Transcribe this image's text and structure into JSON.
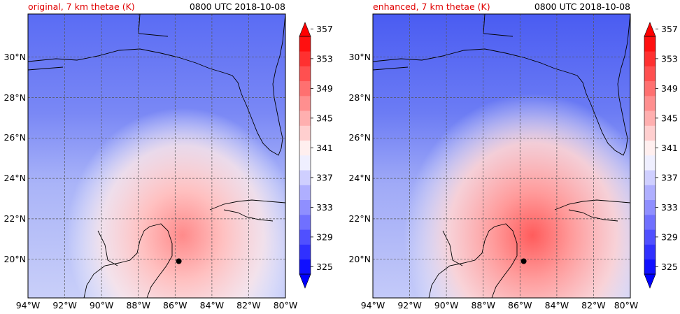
{
  "time_label": "0800 UTC 2018-10-08",
  "panels": [
    {
      "id": "original",
      "title": "original, 7 km thetae (K)"
    },
    {
      "id": "enhanced",
      "title": "enhanced, 7 km thetae (K)"
    }
  ],
  "map": {
    "lon_range": [
      -94,
      -80
    ],
    "lat_range": [
      18.2,
      32
    ],
    "lon_ticks": [
      "94°W",
      "92°W",
      "90°W",
      "88°W",
      "86°W",
      "84°W",
      "82°W",
      "80°W"
    ],
    "lat_ticks": [
      "20°N",
      "22°N",
      "24°N",
      "26°N",
      "28°N",
      "30°N"
    ],
    "storm_center": {
      "lon": -85.8,
      "lat": 19.9
    }
  },
  "colorbar": {
    "min": 325,
    "max": 357,
    "step": 2,
    "tick_labels": [
      "325",
      "329",
      "333",
      "337",
      "341",
      "345",
      "349",
      "353",
      "357"
    ],
    "low_color": "#0000ff",
    "mid_color": "#ffffff",
    "high_color": "#ff0000"
  }
}
